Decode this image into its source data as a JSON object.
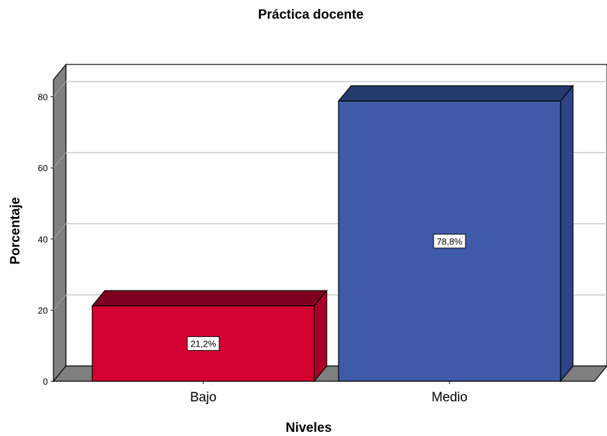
{
  "chart_data": {
    "type": "bar",
    "title": "Práctica docente",
    "xlabel": "Niveles",
    "ylabel": "Porcentaje",
    "categories": [
      "Bajo",
      "Medio"
    ],
    "values": [
      21.2,
      78.8
    ],
    "data_labels": [
      "21,2%",
      "78,8%"
    ],
    "ylim": [
      0,
      85
    ],
    "yticks": [
      0,
      20,
      40,
      60,
      80
    ],
    "grid": true,
    "style": "3d",
    "colors": [
      "#d40030",
      "#3f5aa8"
    ],
    "colors_side": [
      "#a80028",
      "#2d4488"
    ],
    "colors_top": [
      "#7d0020",
      "#253a6d"
    ]
  }
}
